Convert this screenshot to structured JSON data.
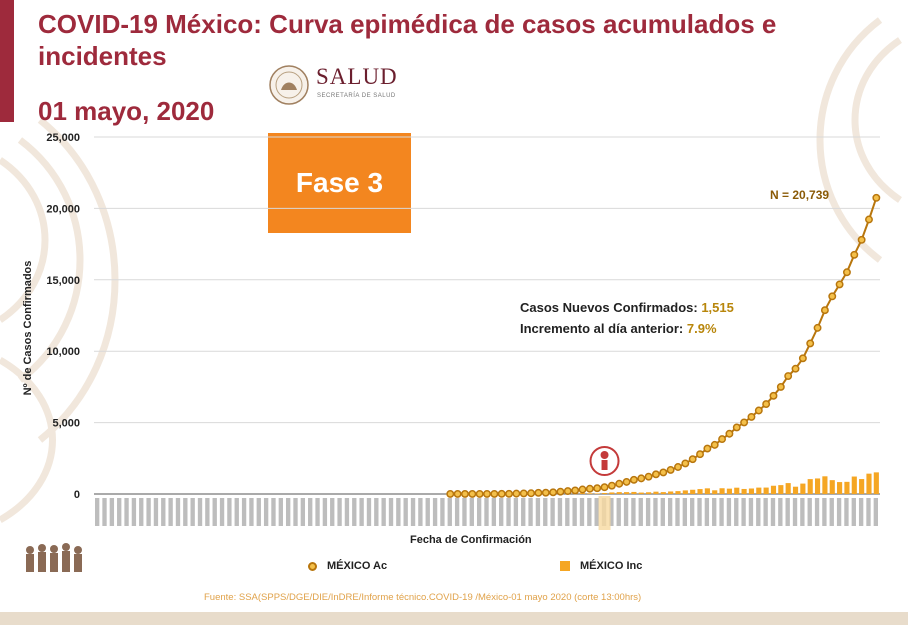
{
  "header": {
    "title": "COVID-19 México: Curva epimédica de casos acumulados e incidentes",
    "date": "01 mayo, 2020"
  },
  "logo": {
    "name": "SALUD",
    "subtitle": "SECRETARÍA DE SALUD"
  },
  "phase_badge": {
    "label": "Fase 3",
    "color": "#f3861f"
  },
  "annotations": {
    "total_label": "N = 20,739",
    "new_cases_label": "Casos Nuevos Confirmados:",
    "new_cases_value": "1,515",
    "increment_label": "Incremento al día anterior:",
    "increment_value": "7.9%"
  },
  "source": "Fuente: SSA(SPPS/DGE/DIE/InDRE/Informe técnico.COVID-19 /México-01 mayo 2020 (corte 13:00hrs)",
  "colors": {
    "accent": "#9e2a3c",
    "cumulative_line": "#b8760d",
    "cumulative_marker": "#f4c04a",
    "incident_bar": "#f5a623"
  },
  "chart_data": {
    "type": "line",
    "title": "COVID-19 México: Curva epimédica de casos acumulados e incidentes",
    "xlabel": "Fecha de Confirmación",
    "ylabel": "Nº de Casos Confirmados",
    "ylim": [
      0,
      25000
    ],
    "yticks": [
      0,
      5000,
      10000,
      15000,
      20000,
      25000
    ],
    "ytick_labels": [
      "0",
      "5,000",
      "10,000",
      "15,000",
      "20,000",
      "25,000"
    ],
    "grid": true,
    "legend_position": "bottom",
    "series": [
      {
        "name": "MÉXICO Ac",
        "type": "line",
        "values": [
          0,
          0,
          0,
          0,
          0,
          0,
          0,
          0,
          0,
          0,
          0,
          0,
          0,
          0,
          0,
          0,
          0,
          0,
          0,
          0,
          0,
          0,
          0,
          0,
          0,
          0,
          0,
          0,
          0,
          0,
          0,
          0,
          0,
          0,
          0,
          0,
          0,
          0,
          0,
          0,
          0,
          0,
          0,
          0,
          0,
          0,
          0,
          0,
          4,
          5,
          5,
          5,
          6,
          7,
          7,
          11,
          12,
          26,
          41,
          53,
          82,
          93,
          118,
          164,
          203,
          251,
          316,
          367,
          405,
          475,
          585,
          717,
          848,
          993,
          1094,
          1215,
          1378,
          1510,
          1688,
          1890,
          2143,
          2439,
          2785,
          3181,
          3441,
          3844,
          4219,
          4661,
          5014,
          5399,
          5847,
          6297,
          6875,
          7497,
          8261,
          8772,
          9501,
          10544,
          11633,
          12872,
          13842,
          14677,
          15529,
          16752,
          17799,
          19224,
          20739
        ]
      },
      {
        "name": "MÉXICO Inc",
        "type": "bar",
        "values": [
          0,
          0,
          0,
          0,
          0,
          0,
          0,
          0,
          0,
          0,
          0,
          0,
          0,
          0,
          0,
          0,
          0,
          0,
          0,
          0,
          0,
          0,
          0,
          0,
          0,
          0,
          0,
          0,
          0,
          0,
          0,
          0,
          0,
          0,
          0,
          0,
          0,
          0,
          0,
          0,
          0,
          0,
          0,
          0,
          0,
          0,
          0,
          0,
          4,
          1,
          0,
          0,
          1,
          1,
          0,
          4,
          1,
          14,
          15,
          12,
          29,
          11,
          25,
          46,
          39,
          48,
          65,
          51,
          38,
          70,
          110,
          132,
          131,
          145,
          101,
          121,
          163,
          132,
          178,
          202,
          253,
          296,
          346,
          396,
          260,
          403,
          375,
          442,
          353,
          385,
          448,
          450,
          578,
          622,
          764,
          511,
          729,
          1043,
          1089,
          1239,
          970,
          835,
          852,
          1223,
          1047,
          1425,
          1515
        ]
      }
    ],
    "x_tick_count": 107
  }
}
